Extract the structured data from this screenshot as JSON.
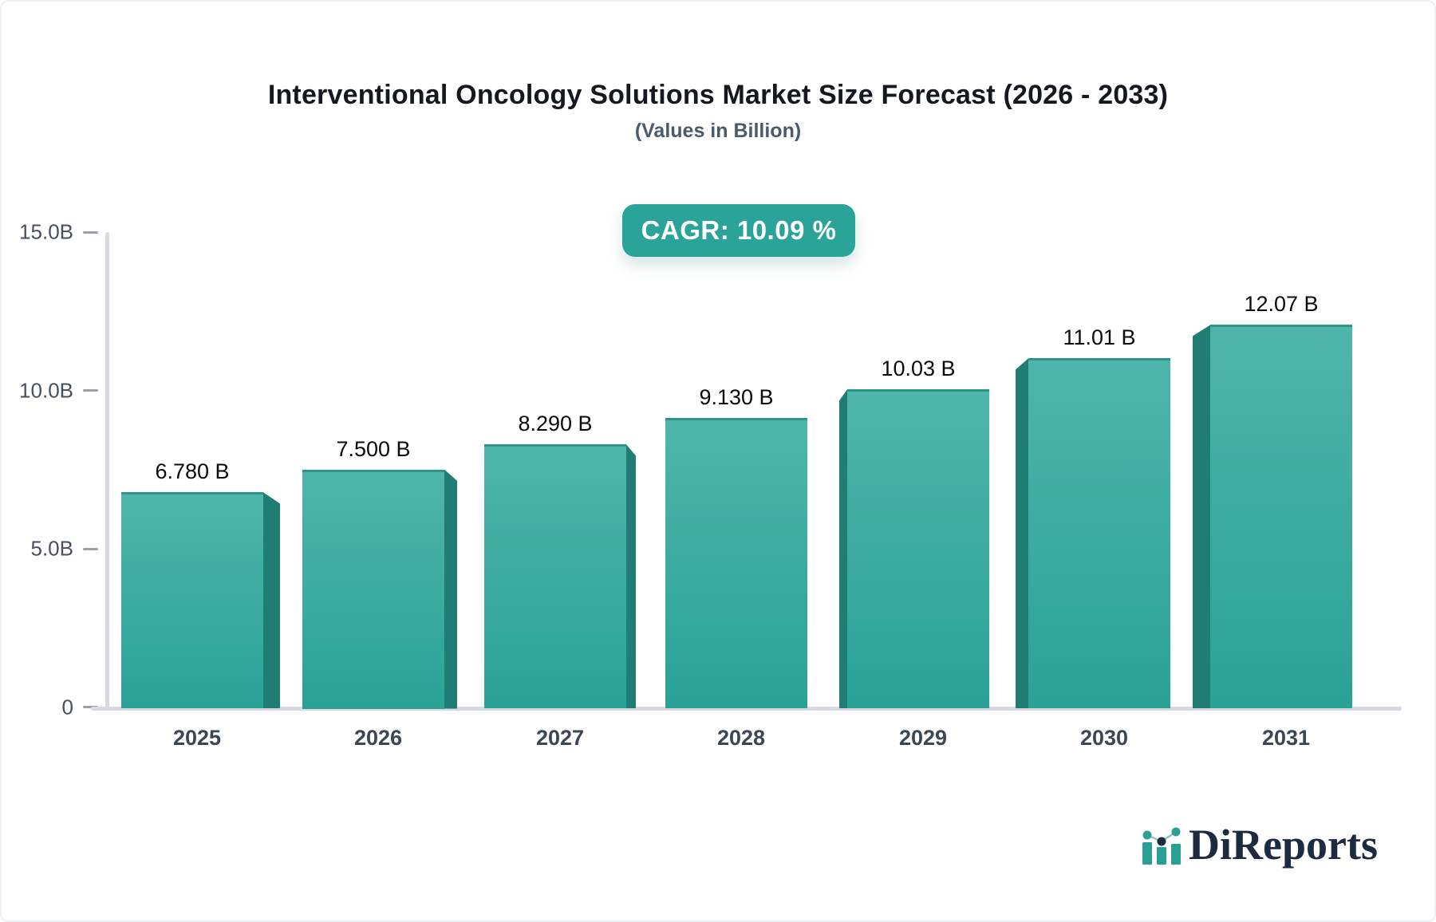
{
  "header": {
    "title": "Interventional Oncology Solutions Market Size Forecast (2026 - 2033)",
    "subtitle": "(Values in Billion)"
  },
  "badge": {
    "label": "CAGR: 10.09 %"
  },
  "chart_data": {
    "type": "bar",
    "categories": [
      "2025",
      "2026",
      "2027",
      "2028",
      "2029",
      "2030",
      "2031"
    ],
    "values": [
      6.78,
      7.5,
      8.29,
      9.13,
      10.03,
      11.01,
      12.07
    ],
    "bar_labels": [
      "6.780 B",
      "7.500 B",
      "8.290 B",
      "9.130 B",
      "10.03 B",
      "11.01 B",
      "12.07 B"
    ],
    "title": "Interventional Oncology Solutions Market Size Forecast (2026 - 2033)",
    "subtitle": "(Values in Billion)",
    "xlabel": "",
    "ylabel": "",
    "ylim": [
      0,
      15
    ],
    "y_ticks": [
      {
        "label": "15.0B",
        "value": 15
      },
      {
        "label": "10.0B",
        "value": 10
      },
      {
        "label": "5.0B",
        "value": 5
      },
      {
        "label": "0",
        "value": 0
      }
    ],
    "grid": "off",
    "legend": "none",
    "value_labels_position": "above-bars",
    "style": "3d-extruded-bars"
  },
  "colors": {
    "bar_top": "#4fb5aa",
    "bar_bottom": "#2aa296",
    "bar_edge": "#2e958a",
    "bar_extrusion": "#1f7d73",
    "badge_bg": "#2aa398",
    "axis_line": "#d7dae0",
    "tick_text": "#47505c",
    "title_text": "#15181e",
    "subtitle_text": "#4b5a6d",
    "logo_navy": "#1c2b40",
    "logo_teal": "#2aa094"
  },
  "logo": {
    "text": "DiReports",
    "icon": "bar-chart-with-trend-dots-icon"
  }
}
